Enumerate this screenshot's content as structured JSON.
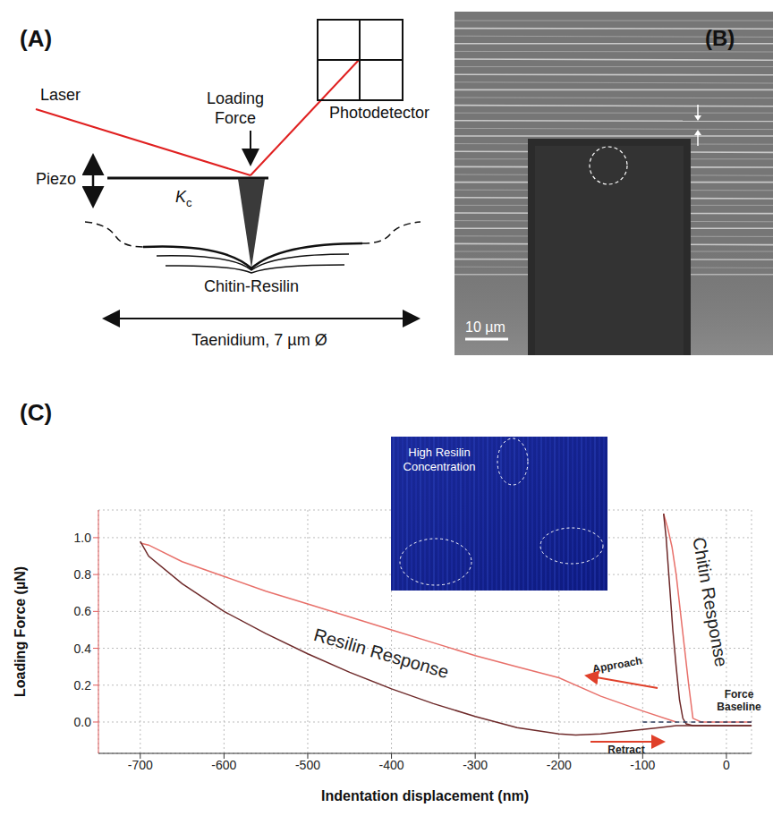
{
  "panel_a": {
    "label": "(A)",
    "laser": "Laser",
    "loading_force": "Loading Force",
    "photodetector": "Photodetector",
    "piezo": "Piezo",
    "spring_constant": "K",
    "spring_constant_subscript": "c",
    "sample": "Chitin-Resilin",
    "taenidium": "Taenidium, 7 µm Ø"
  },
  "panel_b": {
    "label": "(B)",
    "scale_bar": "10 µm"
  },
  "chart_data": {
    "type": "line",
    "panel_label": "(C)",
    "x_label": "Indentation displacement (nm)",
    "y_label": "Loading Force (µN)",
    "xlim": [
      -750,
      30
    ],
    "xticks": [
      -700,
      -600,
      -500,
      -400,
      -300,
      -200,
      -100,
      0
    ],
    "ylim": [
      -0.17,
      1.15
    ],
    "yticks": [
      {
        "value": 0,
        "label": "0.0"
      },
      0.2,
      0.4,
      0.6,
      0.8,
      {
        "value": 1,
        "label": "1.0"
      }
    ],
    "grid": true,
    "annotations": [
      "Approach",
      "Retract"
    ],
    "inset": {
      "label": "High Resilin Concentration"
    },
    "baseline": {
      "label": "Force Baseline",
      "x": [
        -100,
        30
      ],
      "values": [
        0,
        0
      ],
      "color": "#2f3f5f",
      "line_style": "dashed"
    },
    "series": [
      {
        "name": "Resilin Response",
        "approach": {
          "color": "#e8706a",
          "x": [
            -60,
            -100,
            -150,
            -200,
            -250,
            -300,
            -350,
            -400,
            -450,
            -500,
            -550,
            -600,
            -650,
            -690,
            -700
          ],
          "values": [
            0.0,
            0.06,
            0.14,
            0.24,
            0.3,
            0.36,
            0.43,
            0.5,
            0.57,
            0.64,
            0.71,
            0.79,
            0.87,
            0.96,
            0.97
          ]
        },
        "retract": {
          "color": "#6e2a2a",
          "x": [
            -700,
            -690,
            -650,
            -600,
            -550,
            -500,
            -450,
            -400,
            -350,
            -300,
            -250,
            -200,
            -180,
            -150,
            -100,
            -80,
            -60,
            -40,
            0,
            30
          ],
          "values": [
            0.98,
            0.9,
            0.75,
            0.6,
            0.48,
            0.37,
            0.27,
            0.18,
            0.1,
            0.03,
            -0.03,
            -0.065,
            -0.07,
            -0.065,
            -0.04,
            -0.03,
            -0.02,
            -0.02,
            -0.02,
            -0.02
          ]
        }
      },
      {
        "name": "Chitin Response",
        "approach": {
          "color": "#e8706a",
          "x": [
            30,
            0,
            -30,
            -40,
            -45,
            -50,
            -55,
            -60,
            -65,
            -70,
            -75
          ],
          "values": [
            0,
            0,
            0,
            0.02,
            0.2,
            0.4,
            0.6,
            0.8,
            0.95,
            1.05,
            1.13
          ]
        },
        "retract": {
          "color": "#6e2a2a",
          "x": [
            -75,
            -72,
            -68,
            -64,
            -60,
            -56,
            -52,
            -48,
            -40,
            0,
            30
          ],
          "values": [
            1.13,
            1.0,
            0.75,
            0.5,
            0.3,
            0.12,
            0.02,
            -0.01,
            -0.02,
            -0.02,
            -0.02
          ]
        }
      }
    ]
  }
}
